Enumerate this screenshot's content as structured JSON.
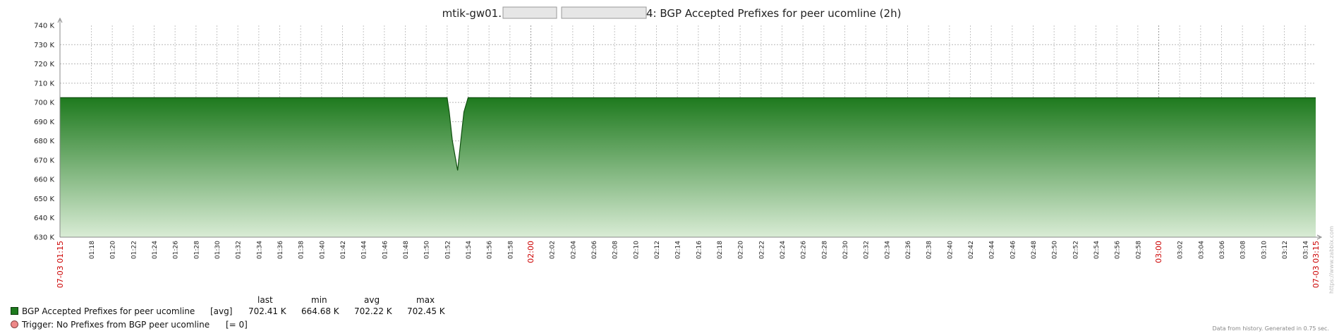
{
  "chart_data": {
    "type": "area",
    "title_prefix": "mtik-gw01.",
    "title_suffix": "4: BGP Accepted Prefixes for peer ucomline (2h)",
    "y_ticks": [
      "630 K",
      "640 K",
      "650 K",
      "660 K",
      "670 K",
      "680 K",
      "690 K",
      "700 K",
      "710 K",
      "720 K",
      "730 K",
      "740 K"
    ],
    "ylim": [
      630000,
      740000
    ],
    "x_start_label": "07-03 01:15",
    "x_end_label": "07-03 03:15",
    "x_ticks": [
      "01:18",
      "01:20",
      "01:22",
      "01:24",
      "01:26",
      "01:28",
      "01:30",
      "01:32",
      "01:34",
      "01:36",
      "01:38",
      "01:40",
      "01:42",
      "01:44",
      "01:46",
      "01:48",
      "01:50",
      "01:52",
      "01:54",
      "01:56",
      "01:58",
      "02:00",
      "02:02",
      "02:04",
      "02:06",
      "02:08",
      "02:10",
      "02:12",
      "02:14",
      "02:16",
      "02:18",
      "02:20",
      "02:22",
      "02:24",
      "02:26",
      "02:28",
      "02:30",
      "02:32",
      "02:34",
      "02:36",
      "02:38",
      "02:40",
      "02:42",
      "02:44",
      "02:46",
      "02:48",
      "02:50",
      "02:52",
      "02:54",
      "02:56",
      "02:58",
      "03:00",
      "03:02",
      "03:04",
      "03:06",
      "03:08",
      "03:10",
      "03:12",
      "03:14"
    ],
    "highlight_ticks": [
      "02:00",
      "03:00"
    ],
    "series": [
      {
        "name": "BGP Accepted Prefixes for peer ucomline",
        "color": "#1E7A1E",
        "x_minutes": [
          0,
          37,
          37.2,
          37.5,
          38,
          38.3,
          38.6,
          39,
          39.3,
          120
        ],
        "values": [
          702450,
          702450,
          695000,
          680000,
          664680,
          680000,
          695000,
          702450,
          702450,
          702410
        ]
      }
    ],
    "grid": true,
    "legend_position": "bottom-left",
    "watermark": "https://www.zabbix.com"
  },
  "legend": {
    "headers": {
      "last": "last",
      "min": "min",
      "avg": "avg",
      "max": "max"
    },
    "series": {
      "name": "BGP Accepted Prefixes for peer ucomline",
      "func": "[avg]",
      "last": "702.41 K",
      "min": "664.68 K",
      "avg": "702.22 K",
      "max": "702.45 K",
      "color": "#1E7A1E"
    },
    "trigger": {
      "name": "Trigger: No Prefixes from BGP peer ucomline",
      "cond": "[= 0]",
      "color": "#EE8888"
    }
  },
  "footer": "Data from history. Generated in 0.75 sec."
}
